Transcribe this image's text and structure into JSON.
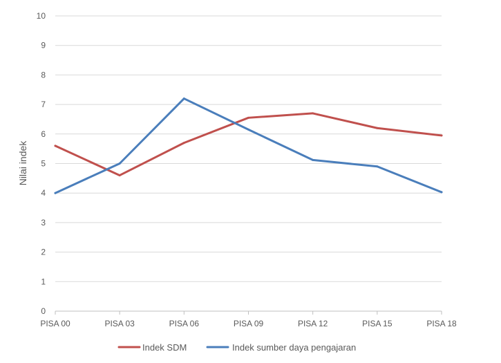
{
  "chart_data": {
    "type": "line",
    "title": "",
    "xlabel": "",
    "ylabel": "Nilai indek",
    "categories": [
      "PISA 00",
      "PISA 03",
      "PISA 06",
      "PISA 09",
      "PISA 12",
      "PISA 15",
      "PISA 18"
    ],
    "yticks": [
      "0",
      "1",
      "2",
      "3",
      "4",
      "5",
      "6",
      "7",
      "8",
      "9",
      "10"
    ],
    "ylim": [
      0,
      10
    ],
    "grid": true,
    "legend_position": "bottom",
    "series": [
      {
        "name": "Indek SDM",
        "color": "#c0504d",
        "values": [
          5.6,
          4.6,
          5.7,
          6.55,
          6.7,
          6.2,
          5.95
        ]
      },
      {
        "name": "Indek sumber daya pengajaran",
        "color": "#4a7ebb",
        "values": [
          4.0,
          5.0,
          7.2,
          6.15,
          5.12,
          4.9,
          4.03
        ]
      }
    ]
  }
}
